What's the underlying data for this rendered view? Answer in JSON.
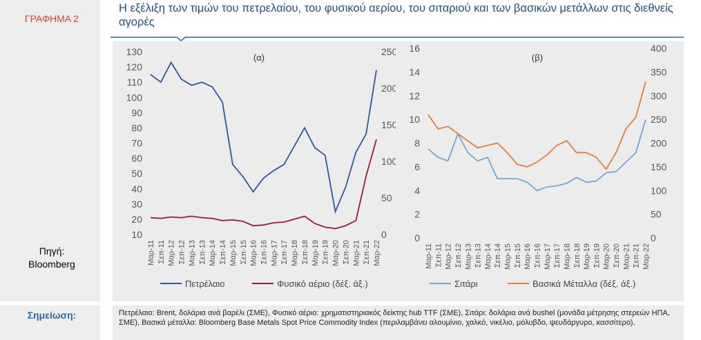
{
  "figure_label": "ΓΡΑΦΗΜΑ 2",
  "title": "Η εξέλιξη των τιμών του πετρελαίου, του φυσικού αερίου, του σιταριού και των βασικών μετάλλων στις διεθνείς αγορές",
  "source_label": "Πηγή:",
  "source": "Bloomberg",
  "note_label": "Σημείωση:",
  "note": "Πετρέλαιο: Brent, δολάρια ανά βαρέλι (ΣΜΕ), Φυσικό αέριο: χρηματιστηριακός δείκτης hub TTF (ΣΜΕ), Σιτάρι: δολάρια ανά bushel (μονάδα μέτρησης στερεών ΗΠΑ, ΣΜΕ), Βασικά μέταλλα: Bloomberg Base Metals Spot Price Commodity Index (περιλαμβάνει αλουμίνιο, χαλκό, νικέλιο, μόλυβδο, ψευδάργυρο, κασσίτερο).",
  "chart_data": [
    {
      "type": "line",
      "annotation": "(α)",
      "categories": [
        "Μαρ-11",
        "Σεπ-11",
        "Μαρ-12",
        "Σεπ-12",
        "Μαρ-13",
        "Σεπ-13",
        "Μαρ-14",
        "Σεπ-14",
        "Μαρ-15",
        "Σεπ-15",
        "Μαρ-16",
        "Σεπ-16",
        "Μαρ-17",
        "Σεπ-17",
        "Μαρ-18",
        "Σεπ-18",
        "Μαρ-19",
        "Σεπ-19",
        "Μαρ-20",
        "Σεπ-20",
        "Μαρ-21",
        "Σεπ-21",
        "Μαρ-22"
      ],
      "ylim": [
        10,
        130
      ],
      "yticks": [
        10,
        20,
        30,
        40,
        50,
        60,
        70,
        80,
        90,
        100,
        110,
        120,
        130
      ],
      "y2lim": [
        0,
        250
      ],
      "y2ticks": [
        0,
        50,
        100,
        150,
        200,
        250
      ],
      "grid": false,
      "series": [
        {
          "name": "Πετρέλαιο",
          "color": "#2f55a4",
          "values": [
            115,
            110,
            123,
            112,
            108,
            110,
            107,
            97,
            56,
            48,
            38,
            47,
            52,
            56,
            68,
            80,
            67,
            62,
            25,
            41,
            64,
            76,
            118
          ]
        },
        {
          "name": "Φυσικό αέριο (δέξ. άξ.)",
          "color": "#a0173c",
          "axis": "y2",
          "values": [
            23,
            22,
            24,
            23,
            25,
            23,
            22,
            19,
            20,
            18,
            12,
            13,
            16,
            17,
            21,
            25,
            15,
            10,
            8,
            12,
            19,
            80,
            130
          ]
        }
      ]
    },
    {
      "type": "line",
      "annotation": "(β)",
      "categories": [
        "Μαρ-11",
        "Σεπ-11",
        "Μαρ-12",
        "Σεπ-12",
        "Μαρ-13",
        "Σεπ-13",
        "Μαρ-14",
        "Σεπ-14",
        "Μαρ-15",
        "Σεπ-15",
        "Μαρ-16",
        "Σεπ-16",
        "Μαρ-17",
        "Σεπ-17",
        "Μαρ-18",
        "Σεπ-18",
        "Μαρ-19",
        "Σεπ-19",
        "Μαρ-20",
        "Σεπ-20",
        "Μαρ-21",
        "Σεπ-21",
        "Μαρ-22"
      ],
      "ylim": [
        0,
        16
      ],
      "yticks": [
        0,
        2,
        4,
        6,
        8,
        10,
        12,
        14,
        16
      ],
      "y2lim": [
        0,
        400
      ],
      "y2ticks": [
        0,
        50,
        100,
        150,
        200,
        250,
        300,
        350,
        400
      ],
      "grid": false,
      "series": [
        {
          "name": "Σιτάρι",
          "color": "#6fa8dc",
          "values": [
            7.5,
            6.8,
            6.5,
            8.8,
            7.2,
            6.5,
            6.8,
            5.0,
            5.0,
            5.0,
            4.7,
            4.0,
            4.3,
            4.4,
            4.6,
            5.1,
            4.7,
            4.8,
            5.5,
            5.6,
            6.4,
            7.2,
            10
          ]
        },
        {
          "name": "Βασικά Μέταλλα (δέξ. άξ.)",
          "color": "#ed7d31",
          "axis": "y2",
          "values": [
            260,
            230,
            235,
            220,
            205,
            190,
            195,
            200,
            180,
            155,
            150,
            160,
            175,
            195,
            205,
            180,
            180,
            170,
            145,
            180,
            230,
            255,
            330
          ]
        }
      ]
    }
  ]
}
